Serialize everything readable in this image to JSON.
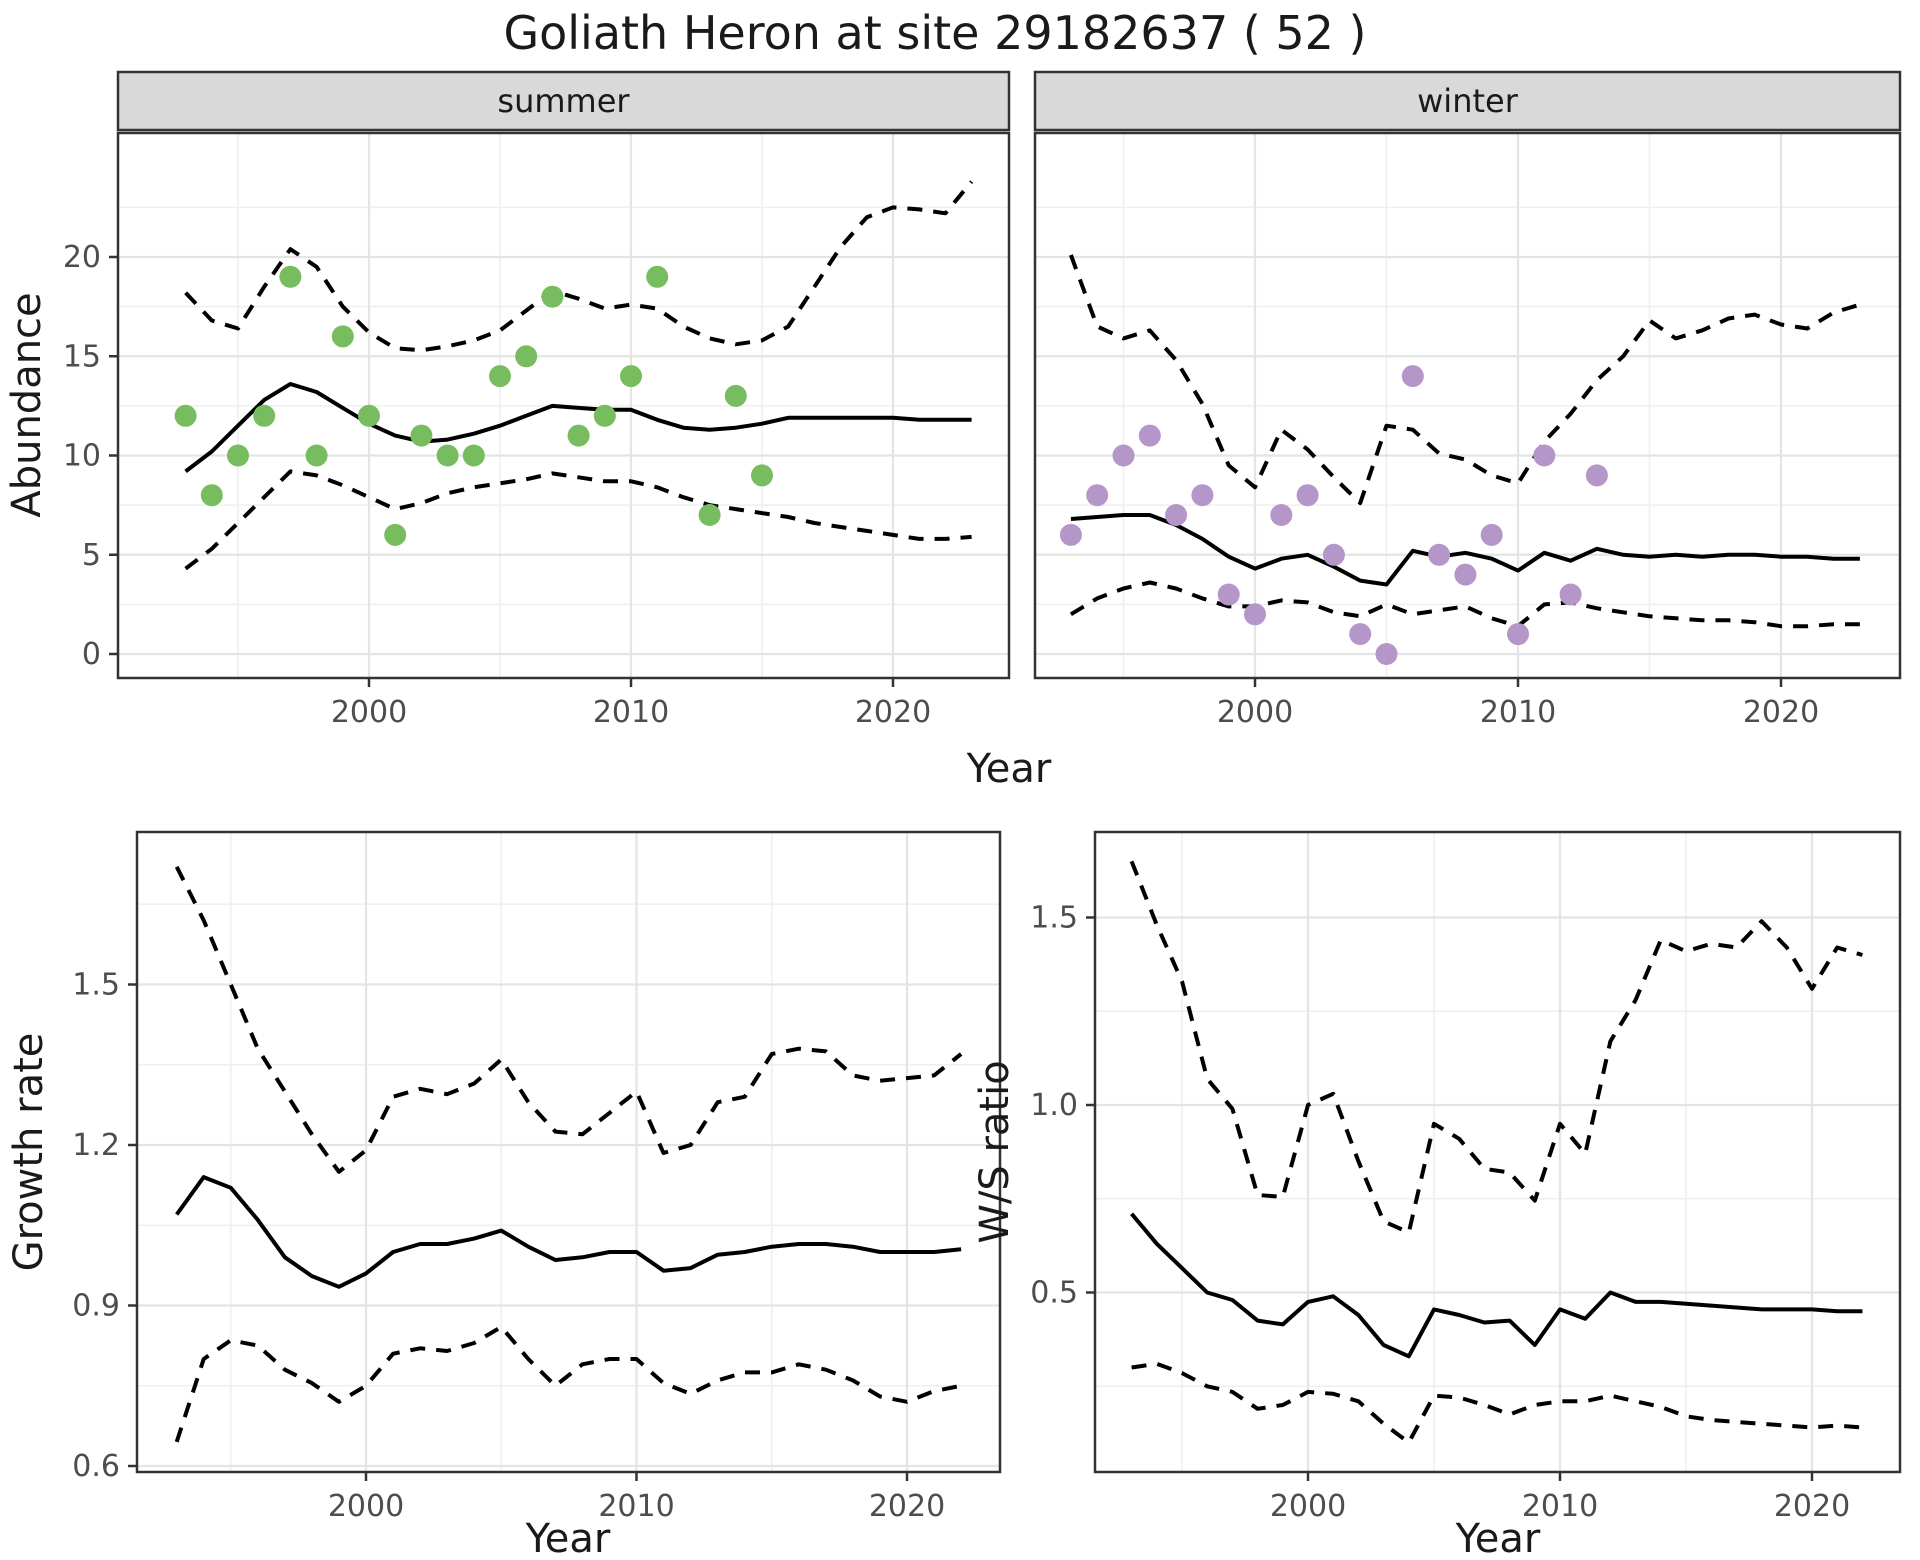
{
  "title": "Goliath Heron at site 29182637 ( 52 )",
  "shared_xlabel_top": "Year",
  "colors": {
    "summer_point": "#77BC5E",
    "winter_point": "#B596C9",
    "line": "#000000",
    "strip_bg": "#D9D9D9",
    "panel_border": "#333333",
    "grid_major": "#E4E4E4",
    "grid_minor": "#EFEFEF",
    "tick_text": "#4D4D4D"
  },
  "chart_data": [
    {
      "type": "scatter",
      "facet_label": "summer",
      "ylabel": "Abundance",
      "xlabel": "Year",
      "legend_position": "none",
      "grid": true,
      "xlim": [
        1990.4,
        2024.4
      ],
      "ylim": [
        -1.2,
        26.2
      ],
      "x_ticks": {
        "values": [
          2000,
          2010,
          2020
        ],
        "labels": [
          "2000",
          "2010",
          "2020"
        ]
      },
      "x_minor": [
        1995,
        2005,
        2015
      ],
      "y_ticks": {
        "values": [
          0,
          5,
          10,
          15,
          20
        ],
        "labels": [
          "0",
          "5",
          "10",
          "15",
          "20"
        ]
      },
      "y_minor": [
        2.5,
        7.5,
        12.5,
        17.5,
        22.5
      ],
      "points": {
        "years": [
          1993,
          1994,
          1995,
          1996,
          1997,
          1998,
          1999,
          2000,
          2001,
          2002,
          2003,
          2004,
          2005,
          2006,
          2007,
          2008,
          2009,
          2010,
          2011,
          2013,
          2014,
          2015
        ],
        "values": [
          12,
          8,
          10,
          12,
          19,
          10,
          16,
          12,
          6,
          11,
          10,
          10,
          14,
          15,
          18,
          11,
          12,
          14,
          19,
          7,
          13,
          9
        ]
      },
      "mean": {
        "start_year": 1993,
        "values": [
          9.2,
          10.2,
          11.5,
          12.8,
          13.6,
          13.2,
          12.4,
          11.6,
          11.0,
          10.7,
          10.8,
          11.1,
          11.5,
          12.0,
          12.5,
          12.4,
          12.3,
          12.3,
          11.8,
          11.4,
          11.3,
          11.4,
          11.6,
          11.9,
          11.9,
          11.9,
          11.9,
          11.9,
          11.8,
          11.8,
          11.8
        ]
      },
      "upper": {
        "start_year": 1993,
        "values": [
          18.2,
          16.8,
          16.4,
          18.5,
          20.4,
          19.5,
          17.5,
          16.2,
          15.4,
          15.3,
          15.5,
          15.8,
          16.3,
          17.3,
          18.3,
          17.9,
          17.4,
          17.6,
          17.4,
          16.5,
          15.9,
          15.6,
          15.8,
          16.5,
          18.5,
          20.5,
          22.0,
          22.5,
          22.4,
          22.2,
          23.8
        ]
      },
      "lower": {
        "start_year": 1993,
        "values": [
          4.3,
          5.3,
          6.6,
          7.9,
          9.2,
          9.0,
          8.5,
          7.9,
          7.3,
          7.6,
          8.1,
          8.4,
          8.6,
          8.8,
          9.1,
          8.9,
          8.7,
          8.7,
          8.4,
          7.9,
          7.5,
          7.3,
          7.1,
          6.9,
          6.6,
          6.4,
          6.2,
          6.0,
          5.8,
          5.8,
          5.9
        ]
      }
    },
    {
      "type": "scatter",
      "facet_label": "winter",
      "ylabel": "Abundance",
      "xlabel": "Year",
      "legend_position": "none",
      "grid": true,
      "xlim": [
        1991.6,
        2024.5
      ],
      "ylim": [
        -1.2,
        26.2
      ],
      "x_ticks": {
        "values": [
          2000,
          2010,
          2020
        ],
        "labels": [
          "2000",
          "2010",
          "2020"
        ]
      },
      "x_minor": [
        1995,
        2005,
        2015
      ],
      "y_ticks": {
        "values": [
          0,
          5,
          10,
          15,
          20
        ],
        "labels": [
          "0",
          "5",
          "10",
          "15",
          "20"
        ]
      },
      "y_minor": [
        2.5,
        7.5,
        12.5,
        17.5,
        22.5
      ],
      "points": {
        "years": [
          1993,
          1994,
          1995,
          1996,
          1997,
          1998,
          1999,
          2000,
          2001,
          2002,
          2003,
          2004,
          2005,
          2006,
          2007,
          2008,
          2009,
          2010,
          2011,
          2012,
          2013
        ],
        "values": [
          6,
          8,
          10,
          11,
          7,
          8,
          3,
          2,
          7,
          8,
          5,
          1,
          0,
          14,
          5,
          4,
          6,
          1,
          10,
          3,
          9
        ]
      },
      "mean": {
        "start_year": 1993,
        "values": [
          6.8,
          6.9,
          7.0,
          7.0,
          6.5,
          5.8,
          4.9,
          4.3,
          4.8,
          5.0,
          4.4,
          3.7,
          3.5,
          5.2,
          4.9,
          5.1,
          4.8,
          4.2,
          5.1,
          4.7,
          5.3,
          5.0,
          4.9,
          5.0,
          4.9,
          5.0,
          5.0,
          4.9,
          4.9,
          4.8,
          4.8
        ]
      },
      "upper": {
        "start_year": 1993,
        "values": [
          20.1,
          16.5,
          15.9,
          16.3,
          14.8,
          12.6,
          9.5,
          8.4,
          11.3,
          10.3,
          8.9,
          7.6,
          11.5,
          11.3,
          10.1,
          9.8,
          9.0,
          8.6,
          10.7,
          12.1,
          13.8,
          15.0,
          16.8,
          15.9,
          16.3,
          16.9,
          17.1,
          16.6,
          16.4,
          17.2,
          17.6
        ]
      },
      "lower": {
        "start_year": 1993,
        "values": [
          2.0,
          2.8,
          3.3,
          3.6,
          3.3,
          2.8,
          2.4,
          2.4,
          2.7,
          2.6,
          2.1,
          1.9,
          2.5,
          2.0,
          2.2,
          2.4,
          1.8,
          1.4,
          2.5,
          2.6,
          2.3,
          2.1,
          1.9,
          1.8,
          1.7,
          1.7,
          1.6,
          1.4,
          1.4,
          1.5,
          1.5
        ]
      }
    },
    {
      "type": "line",
      "facet_label": "",
      "ylabel": "Growth rate",
      "xlabel": "Year",
      "legend_position": "none",
      "grid": true,
      "xlim": [
        1991.5,
        2023.4
      ],
      "ylim": [
        0.59,
        1.785
      ],
      "x_ticks": {
        "values": [
          2000,
          2010,
          2020
        ],
        "labels": [
          "2000",
          "2010",
          "2020"
        ]
      },
      "x_minor": [
        1995,
        2005,
        2015
      ],
      "y_ticks": {
        "values": [
          0.6,
          0.9,
          1.2,
          1.5
        ],
        "labels": [
          "0.6",
          "0.9",
          "1.2",
          "1.5"
        ]
      },
      "y_minor": [
        0.75,
        1.05,
        1.35,
        1.65
      ],
      "mean": {
        "start_year": 1993,
        "values": [
          1.07,
          1.14,
          1.12,
          1.06,
          0.99,
          0.955,
          0.935,
          0.96,
          1.0,
          1.015,
          1.015,
          1.025,
          1.04,
          1.01,
          0.985,
          0.99,
          1.0,
          1.0,
          0.965,
          0.97,
          0.995,
          1.0,
          1.01,
          1.015,
          1.015,
          1.01,
          1.0,
          1.0,
          1.0,
          1.005
        ]
      },
      "upper": {
        "start_year": 1993,
        "values": [
          1.72,
          1.62,
          1.5,
          1.38,
          1.3,
          1.22,
          1.15,
          1.19,
          1.29,
          1.305,
          1.295,
          1.315,
          1.36,
          1.28,
          1.225,
          1.22,
          1.26,
          1.3,
          1.185,
          1.2,
          1.28,
          1.29,
          1.37,
          1.38,
          1.375,
          1.33,
          1.32,
          1.325,
          1.33,
          1.37
        ]
      },
      "lower": {
        "start_year": 1993,
        "values": [
          0.645,
          0.8,
          0.835,
          0.825,
          0.78,
          0.755,
          0.72,
          0.75,
          0.81,
          0.82,
          0.815,
          0.83,
          0.86,
          0.8,
          0.75,
          0.79,
          0.8,
          0.8,
          0.755,
          0.735,
          0.76,
          0.775,
          0.775,
          0.79,
          0.78,
          0.76,
          0.73,
          0.72,
          0.74,
          0.75
        ]
      }
    },
    {
      "type": "line",
      "facet_label": "",
      "ylabel": "W/S ratio",
      "xlabel": "Year",
      "legend_position": "none",
      "grid": true,
      "xlim": [
        1991.6,
        2023.5
      ],
      "ylim": [
        0.02,
        1.73
      ],
      "x_ticks": {
        "values": [
          2000,
          2010,
          2020
        ],
        "labels": [
          "2000",
          "2010",
          "2020"
        ]
      },
      "x_minor": [
        1995,
        2005,
        2015
      ],
      "y_ticks": {
        "values": [
          0.5,
          1.0,
          1.5
        ],
        "labels": [
          "0.5",
          "1.0",
          "1.5"
        ]
      },
      "y_minor": [
        0.25,
        0.75,
        1.25
      ],
      "mean": {
        "start_year": 1993,
        "values": [
          0.71,
          0.63,
          0.565,
          0.5,
          0.48,
          0.425,
          0.415,
          0.475,
          0.49,
          0.44,
          0.36,
          0.33,
          0.455,
          0.44,
          0.42,
          0.425,
          0.36,
          0.455,
          0.43,
          0.5,
          0.475,
          0.475,
          0.47,
          0.465,
          0.46,
          0.455,
          0.455,
          0.455,
          0.45,
          0.45
        ]
      },
      "upper": {
        "start_year": 1993,
        "values": [
          1.65,
          1.48,
          1.33,
          1.07,
          0.99,
          0.76,
          0.755,
          1.0,
          1.03,
          0.85,
          0.69,
          0.66,
          0.95,
          0.91,
          0.83,
          0.82,
          0.745,
          0.95,
          0.87,
          1.17,
          1.28,
          1.44,
          1.41,
          1.43,
          1.42,
          1.49,
          1.42,
          1.31,
          1.42,
          1.4
        ]
      },
      "lower": {
        "start_year": 1993,
        "values": [
          0.3,
          0.31,
          0.285,
          0.25,
          0.235,
          0.19,
          0.2,
          0.235,
          0.23,
          0.21,
          0.15,
          0.1,
          0.225,
          0.22,
          0.2,
          0.175,
          0.2,
          0.21,
          0.21,
          0.225,
          0.21,
          0.195,
          0.17,
          0.16,
          0.155,
          0.15,
          0.145,
          0.14,
          0.145,
          0.14
        ]
      }
    }
  ]
}
